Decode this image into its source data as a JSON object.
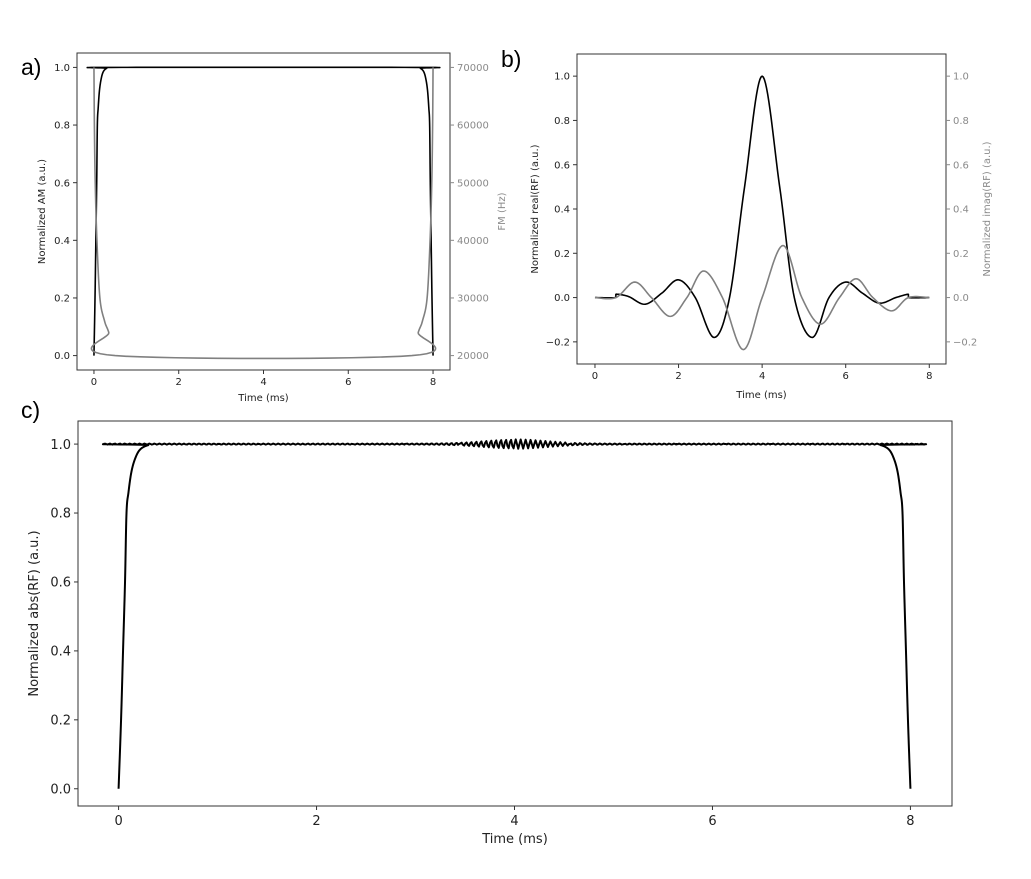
{
  "chart_data": [
    {
      "panel_label": "a)",
      "type": "line",
      "xlabel": "Time (ms)",
      "ylabel": "Normalized AM (a.u.)",
      "ylabel_right": "FM (Hz)",
      "xlim": [
        -0.4,
        8.4
      ],
      "ylim": [
        -0.05,
        1.05
      ],
      "ylim_right": [
        17500,
        72500
      ],
      "xticks": [
        0,
        2,
        4,
        6,
        8
      ],
      "xtick_labels": [
        "0",
        "2",
        "4",
        "6",
        "8"
      ],
      "yticks": [
        0,
        0.2,
        0.4,
        0.6,
        0.8,
        1.0
      ],
      "ytick_labels": [
        "0.0",
        "0.2",
        "0.4",
        "0.6",
        "0.8",
        "1.0"
      ],
      "yticks_right": [
        20000,
        30000,
        40000,
        50000,
        60000,
        70000
      ],
      "ytick_labels_right": [
        "20000",
        "30000",
        "40000",
        "50000",
        "60000",
        "70000"
      ],
      "grid": false,
      "series": [
        {
          "axis": "left",
          "color": "#000000",
          "points": [
            [
              0,
              0
            ],
            [
              0.025,
              0.2
            ],
            [
              0.045,
              0.4
            ],
            [
              0.065,
              0.6
            ],
            [
              0.08,
              0.8
            ],
            [
              0.1,
              0.86
            ],
            [
              0.13,
              0.92
            ],
            [
              0.17,
              0.96
            ],
            [
              0.22,
              0.985
            ],
            [
              0.3,
              0.997
            ],
            [
              0.4,
              1.0
            ],
            [
              7.6,
              1.0
            ],
            [
              7.7,
              0.997
            ],
            [
              7.78,
              0.985
            ],
            [
              7.83,
              0.96
            ],
            [
              7.87,
              0.92
            ],
            [
              7.9,
              0.86
            ],
            [
              7.92,
              0.8
            ],
            [
              7.935,
              0.6
            ],
            [
              7.955,
              0.4
            ],
            [
              7.975,
              0.2
            ],
            [
              8,
              0
            ]
          ]
        },
        {
          "axis": "right",
          "color": "#808080",
          "points": [
            [
              0,
              70000
            ],
            [
              0.01,
              60000
            ],
            [
              0.03,
              50000
            ],
            [
              0.07,
              40000
            ],
            [
              0.14,
              30000
            ],
            [
              0.25,
              26000
            ],
            [
              0.35,
              24000
            ],
            [
              0.5,
              20000
            ],
            [
              7.5,
              20000
            ],
            [
              7.65,
              24000
            ],
            [
              7.75,
              26000
            ],
            [
              7.86,
              30000
            ],
            [
              7.93,
              40000
            ],
            [
              7.97,
              50000
            ],
            [
              7.99,
              60000
            ],
            [
              8,
              70000
            ]
          ]
        }
      ]
    },
    {
      "panel_label": "b)",
      "type": "line",
      "xlabel": "Time (ms)",
      "ylabel": "Normalized real(RF) (a.u.)",
      "ylabel_right": "Normalized imag(RF) (a.u.)",
      "xlim": [
        -0.43,
        8.4
      ],
      "ylim": [
        -0.3,
        1.1
      ],
      "ylim_right": [
        -0.3,
        1.1
      ],
      "xticks": [
        0,
        2,
        4,
        6,
        8
      ],
      "xtick_labels": [
        "0",
        "2",
        "4",
        "6",
        "8"
      ],
      "yticks": [
        -0.2,
        0,
        0.2,
        0.4,
        0.6,
        0.8,
        1.0
      ],
      "ytick_labels": [
        "−0.2",
        "0.0",
        "0.2",
        "0.4",
        "0.6",
        "0.8",
        "1.0"
      ],
      "yticks_right": [
        -0.2,
        0,
        0.2,
        0.4,
        0.6,
        0.8,
        1.0
      ],
      "ytick_labels_right": [
        "−0.2",
        "0.0",
        "0.2",
        "0.4",
        "0.6",
        "0.8",
        "1.0"
      ],
      "grid": false,
      "series": [
        {
          "axis": "left",
          "color": "#000000",
          "points": [
            [
              0,
              0
            ],
            [
              0.5,
              0
            ],
            [
              0.5,
              0.015
            ],
            [
              0.8,
              0.005
            ],
            [
              1.2,
              -0.03
            ],
            [
              1.6,
              0.02
            ],
            [
              2.0,
              0.08
            ],
            [
              2.4,
              0.0
            ],
            [
              2.85,
              -0.18
            ],
            [
              3.22,
              0.0
            ],
            [
              3.58,
              0.5
            ],
            [
              4.0,
              1.0
            ],
            [
              4.42,
              0.5
            ],
            [
              4.77,
              0.0
            ],
            [
              5.2,
              -0.18
            ],
            [
              5.6,
              0.0
            ],
            [
              6.0,
              0.07
            ],
            [
              6.4,
              0.02
            ],
            [
              6.8,
              -0.025
            ],
            [
              7.2,
              0.0
            ],
            [
              7.5,
              0.015
            ],
            [
              7.5,
              0
            ],
            [
              8,
              0
            ]
          ]
        },
        {
          "axis": "right",
          "color": "#808080",
          "points": [
            [
              0,
              0
            ],
            [
              0.5,
              0
            ],
            [
              0.95,
              0.07
            ],
            [
              1.35,
              0
            ],
            [
              1.8,
              -0.085
            ],
            [
              2.2,
              0
            ],
            [
              2.6,
              0.12
            ],
            [
              3.05,
              0
            ],
            [
              3.55,
              -0.235
            ],
            [
              4.0,
              0
            ],
            [
              4.5,
              0.235
            ],
            [
              4.95,
              0
            ],
            [
              5.4,
              -0.12
            ],
            [
              5.85,
              0
            ],
            [
              6.25,
              0.085
            ],
            [
              6.65,
              0
            ],
            [
              7.1,
              -0.06
            ],
            [
              7.5,
              0
            ],
            [
              8,
              0
            ]
          ]
        }
      ]
    },
    {
      "panel_label": "c)",
      "type": "line",
      "xlabel": "Time (ms)",
      "ylabel": "Normalized abs(RF) (a.u.)",
      "xlim": [
        -0.41,
        8.42
      ],
      "ylim": [
        -0.05,
        1.067
      ],
      "xticks": [
        0,
        2,
        4,
        6,
        8
      ],
      "xtick_labels": [
        "0",
        "2",
        "4",
        "6",
        "8"
      ],
      "yticks": [
        0,
        0.2,
        0.4,
        0.6,
        0.8,
        1.0
      ],
      "ytick_labels": [
        "0.0",
        "0.2",
        "0.4",
        "0.6",
        "0.8",
        "1.0"
      ],
      "grid": false,
      "series": [
        {
          "axis": "left",
          "color": "#000000",
          "points": [
            [
              0,
              0
            ],
            [
              0.025,
              0.2
            ],
            [
              0.045,
              0.4
            ],
            [
              0.065,
              0.6
            ],
            [
              0.08,
              0.8
            ],
            [
              0.1,
              0.86
            ],
            [
              0.13,
              0.92
            ],
            [
              0.17,
              0.96
            ],
            [
              0.22,
              0.985
            ],
            [
              0.3,
              0.997
            ],
            [
              0.4,
              1.0
            ],
            [
              7.6,
              1.0
            ],
            [
              7.7,
              0.997
            ],
            [
              7.78,
              0.985
            ],
            [
              7.83,
              0.96
            ],
            [
              7.87,
              0.92
            ],
            [
              7.9,
              0.86
            ],
            [
              7.92,
              0.8
            ],
            [
              7.935,
              0.6
            ],
            [
              7.955,
              0.4
            ],
            [
              7.975,
              0.2
            ],
            [
              8,
              0
            ]
          ],
          "ripple": {
            "center": 4,
            "amplitude": 0.012,
            "period": 0.05,
            "width": 0.45
          }
        }
      ]
    }
  ]
}
